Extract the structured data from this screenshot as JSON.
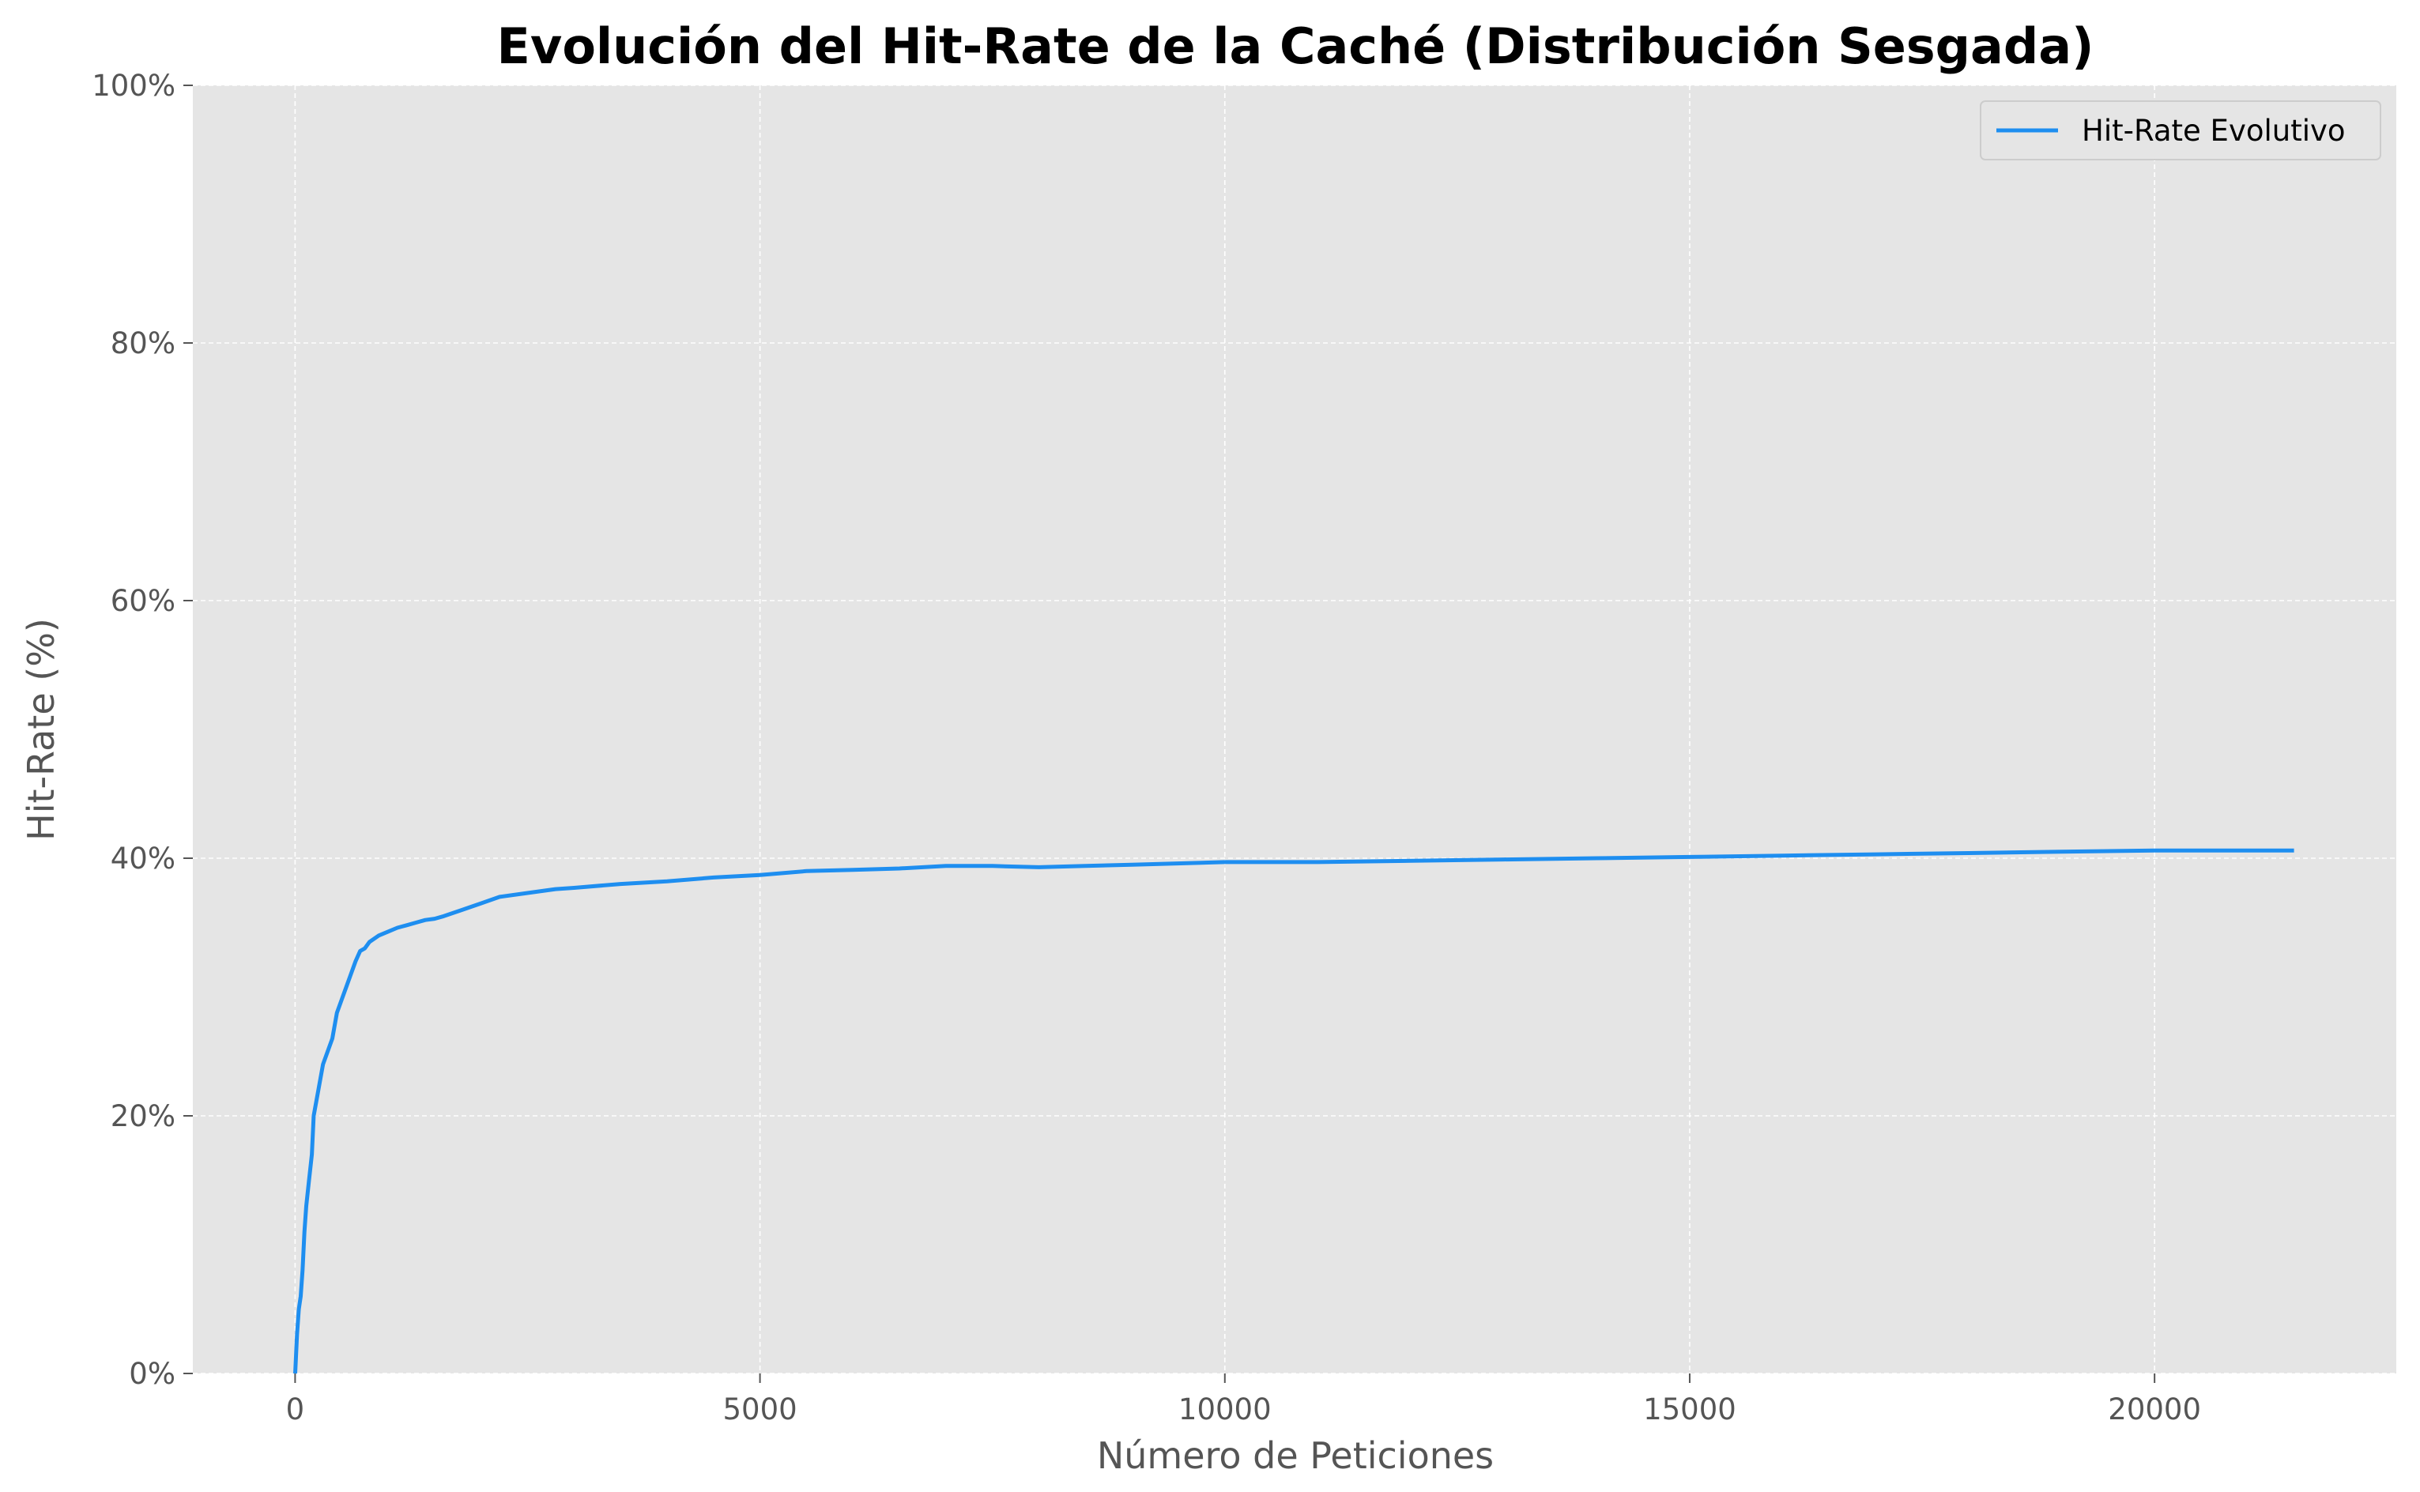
{
  "chart_data": {
    "type": "line",
    "title": "Evolución del Hit-Rate de la Caché (Distribución Sesgada)",
    "xlabel": "Número de Peticiones",
    "ylabel": "Hit-Rate (%)",
    "xlim": [
      -1100,
      22600
    ],
    "ylim": [
      0,
      100
    ],
    "xticks": [
      0,
      5000,
      10000,
      15000,
      20000
    ],
    "xtick_labels": [
      "0",
      "5000",
      "10000",
      "15000",
      "20000"
    ],
    "yticks": [
      0,
      20,
      40,
      60,
      80,
      100
    ],
    "ytick_labels": [
      "0%",
      "20%",
      "40%",
      "60%",
      "80%",
      "100%"
    ],
    "grid": true,
    "legend_position": "top-right",
    "colors": {
      "line": "#1E8EF0",
      "plot_background": "#E5E5E5",
      "grid": "#FFFFFF",
      "text": "#555555"
    },
    "series": [
      {
        "name": "Hit-Rate Evolutivo",
        "x": [
          1,
          20,
          40,
          60,
          80,
          100,
          120,
          150,
          180,
          200,
          250,
          300,
          350,
          400,
          450,
          500,
          550,
          600,
          650,
          700,
          750,
          800,
          900,
          1000,
          1100,
          1200,
          1300,
          1400,
          1500,
          1600,
          1800,
          2000,
          2200,
          2500,
          2800,
          3000,
          3500,
          4000,
          4500,
          5000,
          5500,
          6000,
          6500,
          7000,
          7500,
          8000,
          8500,
          9000,
          10000,
          11000,
          12000,
          13000,
          14000,
          15000,
          16000,
          17000,
          18000,
          19000,
          20000,
          21000,
          21500
        ],
        "y": [
          0,
          3,
          5,
          6,
          8,
          11,
          13,
          15,
          17,
          20,
          22,
          24,
          25,
          26,
          28,
          29,
          30,
          31,
          32,
          32.8,
          33,
          33.5,
          34,
          34.3,
          34.6,
          34.8,
          35,
          35.2,
          35.3,
          35.5,
          36,
          36.5,
          37,
          37.3,
          37.6,
          37.7,
          38,
          38.2,
          38.5,
          38.7,
          39,
          39.1,
          39.2,
          39.4,
          39.4,
          39.3,
          39.4,
          39.5,
          39.7,
          39.7,
          39.8,
          39.9,
          40,
          40.1,
          40.2,
          40.3,
          40.4,
          40.5,
          40.6,
          40.6,
          40.6
        ]
      }
    ]
  }
}
